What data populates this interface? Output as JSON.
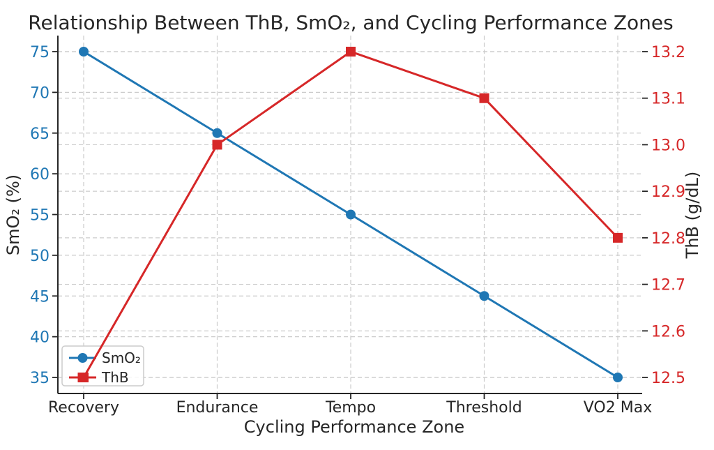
{
  "chart_data": {
    "type": "line",
    "title": "Relationship Between ThB, SmO₂, and Cycling Performance Zones",
    "xlabel": "Cycling Performance Zone",
    "categories": [
      "Recovery",
      "Endurance",
      "Tempo",
      "Threshold",
      "VO2 Max"
    ],
    "grid": true,
    "grid_style": "dashed",
    "axes": {
      "left": {
        "label": "SmO₂ (%)",
        "color": "#1f77b4",
        "min": 35,
        "max": 75,
        "ticks": [
          35,
          40,
          45,
          50,
          55,
          60,
          65,
          70,
          75
        ],
        "tick_labels": [
          "35",
          "40",
          "45",
          "50",
          "55",
          "60",
          "65",
          "70",
          "75"
        ]
      },
      "right": {
        "label": "ThB (g/dL)",
        "color": "#d62728",
        "min": 12.5,
        "max": 13.2,
        "ticks": [
          12.5,
          12.6,
          12.7,
          12.8,
          12.9,
          13.0,
          13.1,
          13.2
        ],
        "tick_labels": [
          "12.5",
          "12.6",
          "12.7",
          "12.8",
          "12.9",
          "13.0",
          "13.1",
          "13.2"
        ]
      }
    },
    "series": [
      {
        "name": "SmO₂",
        "axis": "left",
        "color": "#1f77b4",
        "marker": "circle",
        "values": [
          75,
          65,
          55,
          45,
          35
        ]
      },
      {
        "name": "ThB",
        "axis": "right",
        "color": "#d62728",
        "marker": "square",
        "values": [
          12.5,
          13.0,
          13.2,
          13.1,
          12.8
        ]
      }
    ],
    "legend": {
      "position": "lower left",
      "entries": [
        "SmO₂",
        "ThB"
      ]
    }
  }
}
